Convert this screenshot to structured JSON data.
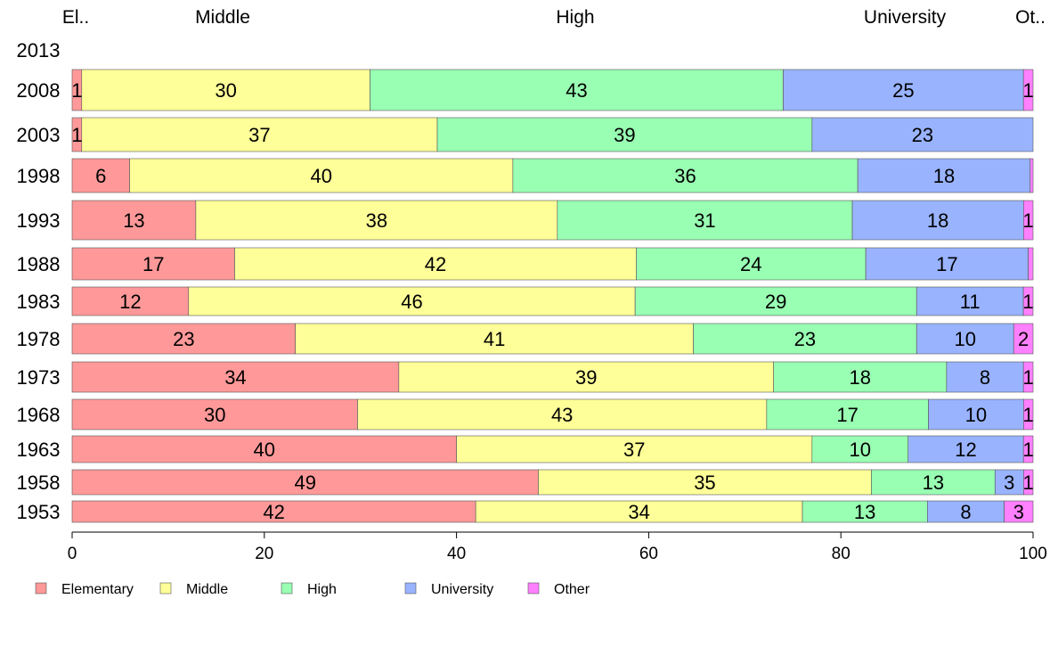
{
  "chart_data": {
    "type": "bar",
    "orientation": "horizontal",
    "stacked": true,
    "categories": [
      "2013",
      "2008",
      "2003",
      "1998",
      "1993",
      "1988",
      "1983",
      "1978",
      "1973",
      "1968",
      "1963",
      "1958",
      "1953"
    ],
    "series": [
      {
        "name": "Elementary",
        "color": "#ff9999",
        "values": [
          null,
          1,
          1,
          6,
          13,
          17,
          12,
          23,
          34,
          30,
          40,
          49,
          42
        ],
        "labels": [
          "",
          "1",
          "1",
          "6",
          "13",
          "17",
          "12",
          "23",
          "34",
          "30",
          "40",
          "49",
          "42"
        ]
      },
      {
        "name": "Middle",
        "color": "#ffff99",
        "values": [
          null,
          30,
          37,
          40,
          38,
          42,
          46,
          41,
          39,
          43,
          37,
          35,
          34
        ],
        "labels": [
          "",
          "30",
          "37",
          "40",
          "38",
          "42",
          "46",
          "41",
          "39",
          "43",
          "37",
          "35",
          "34"
        ]
      },
      {
        "name": "High",
        "color": "#99ffb3",
        "values": [
          null,
          43,
          39,
          36,
          31,
          24,
          29,
          23,
          18,
          17,
          10,
          13,
          13
        ],
        "labels": [
          "",
          "43",
          "39",
          "36",
          "31",
          "24",
          "29",
          "23",
          "18",
          "17",
          "10",
          "13",
          "13"
        ]
      },
      {
        "name": "University",
        "color": "#99b3ff",
        "values": [
          null,
          25,
          23,
          18,
          18,
          17,
          11,
          10,
          8,
          10,
          12,
          3,
          8
        ],
        "labels": [
          "",
          "25",
          "23",
          "18",
          "18",
          "17",
          "11",
          "10",
          "8",
          "10",
          "12",
          "3",
          "8"
        ]
      },
      {
        "name": "Other",
        "color": "#ff80ff",
        "values": [
          null,
          1,
          0,
          0.3,
          1,
          0.5,
          1,
          2,
          1,
          1,
          1,
          1,
          3
        ],
        "labels": [
          "",
          "1",
          "",
          "",
          "1",
          "",
          "1",
          "2",
          "1",
          "1",
          "1",
          "1",
          "3"
        ]
      }
    ],
    "top_labels": [
      "El..",
      "Middle",
      "High",
      "University",
      "Ot.."
    ],
    "xlim": [
      0,
      100
    ],
    "xticks": [
      "0",
      "20",
      "40",
      "60",
      "80",
      "100"
    ],
    "grid": false,
    "legend_position": "bottom"
  }
}
